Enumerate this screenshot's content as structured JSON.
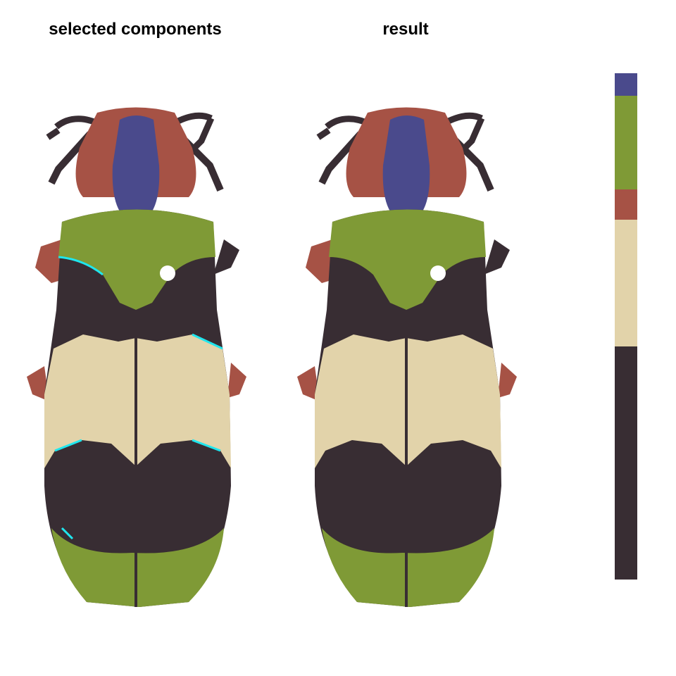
{
  "panels": {
    "left_title": "selected components",
    "right_title": "result"
  },
  "colors": {
    "blue": "#4A4A8C",
    "green": "#7F9A36",
    "red": "#A65245",
    "cream": "#E2D3AA",
    "dark": "#382D33",
    "cyan": "#1FE6EE",
    "white": "#FFFFFF"
  },
  "palette": [
    {
      "name": "blue",
      "color": "#4A4A8C",
      "fraction": 0.045
    },
    {
      "name": "green",
      "color": "#7F9A36",
      "fraction": 0.185
    },
    {
      "name": "red",
      "color": "#A65245",
      "fraction": 0.06
    },
    {
      "name": "cream",
      "color": "#E2D3AA",
      "fraction": 0.25
    },
    {
      "name": "dark",
      "color": "#382D33",
      "fraction": 0.46
    }
  ]
}
